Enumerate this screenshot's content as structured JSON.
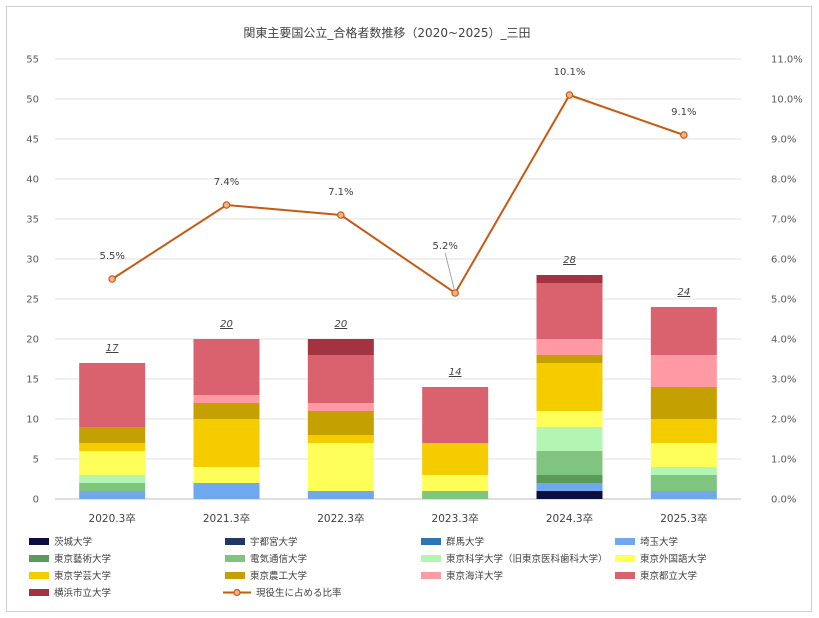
{
  "chart_data": {
    "type": "bar",
    "stacked": true,
    "title": "関東主要国公立_合格者数推移（2020~2025）_三田",
    "categories": [
      "2020.3卒",
      "2021.3卒",
      "2022.3卒",
      "2023.3卒",
      "2024.3卒",
      "2025.3卒"
    ],
    "ylim": [
      0,
      55
    ],
    "yticks": [
      0,
      5,
      10,
      15,
      20,
      25,
      30,
      35,
      40,
      45,
      50,
      55
    ],
    "y2lim": [
      0.0,
      11.0
    ],
    "y2ticks": [
      "0.0%",
      "1.0%",
      "2.0%",
      "3.0%",
      "4.0%",
      "5.0%",
      "6.0%",
      "7.0%",
      "8.0%",
      "9.0%",
      "10.0%",
      "11.0%"
    ],
    "grid": true,
    "legend_position": "bottom",
    "totals": [
      "17",
      "20",
      "20",
      "14",
      "28",
      "24"
    ],
    "series": [
      {
        "name": "茨城大学",
        "color": "#0b0f3f",
        "values": [
          0,
          0,
          0,
          0,
          1,
          0
        ]
      },
      {
        "name": "宇都宮大学",
        "color": "#1f3864",
        "values": [
          0,
          0,
          0,
          0,
          0,
          0
        ]
      },
      {
        "name": "群馬大学",
        "color": "#2e75b6",
        "values": [
          0,
          0,
          0,
          0,
          0,
          0
        ]
      },
      {
        "name": "埼玉大学",
        "color": "#6fa8ef",
        "values": [
          1,
          2,
          1,
          0,
          1,
          1
        ]
      },
      {
        "name": "東京藝術大学",
        "color": "#5b9a5b",
        "values": [
          0,
          0,
          0,
          0,
          1,
          0
        ]
      },
      {
        "name": "電気通信大学",
        "color": "#7fc47f",
        "values": [
          1,
          0,
          0,
          1,
          3,
          2
        ]
      },
      {
        "name": "東京科学大学（旧東京医科歯科大学）",
        "color": "#b3f5b3",
        "values": [
          1,
          0,
          0,
          0,
          3,
          1
        ]
      },
      {
        "name": "東京外国語大学",
        "color": "#ffff5a",
        "values": [
          3,
          2,
          6,
          2,
          2,
          3
        ]
      },
      {
        "name": "東京学芸大学",
        "color": "#f5cc00",
        "values": [
          1,
          6,
          1,
          4,
          6,
          3
        ]
      },
      {
        "name": "東京農工大学",
        "color": "#c4a000",
        "values": [
          2,
          2,
          3,
          0,
          1,
          4
        ]
      },
      {
        "name": "東京海洋大学",
        "color": "#ff9aa2",
        "values": [
          0,
          1,
          1,
          0,
          2,
          4
        ]
      },
      {
        "name": "東京都立大学",
        "color": "#d9626e",
        "values": [
          8,
          7,
          6,
          7,
          7,
          6
        ]
      },
      {
        "name": "横浜市立大学",
        "color": "#a33340",
        "values": [
          0,
          0,
          2,
          0,
          1,
          0
        ]
      }
    ],
    "line_series": {
      "name": "現役生に占める比率",
      "color": "#c55a11",
      "axis": "secondary",
      "values": [
        5.5,
        7.35,
        7.1,
        5.15,
        10.1,
        9.1
      ],
      "labels": [
        "5.5%",
        "7.4%",
        "7.1%",
        "5.2%",
        "10.1%",
        "9.1%"
      ]
    }
  }
}
